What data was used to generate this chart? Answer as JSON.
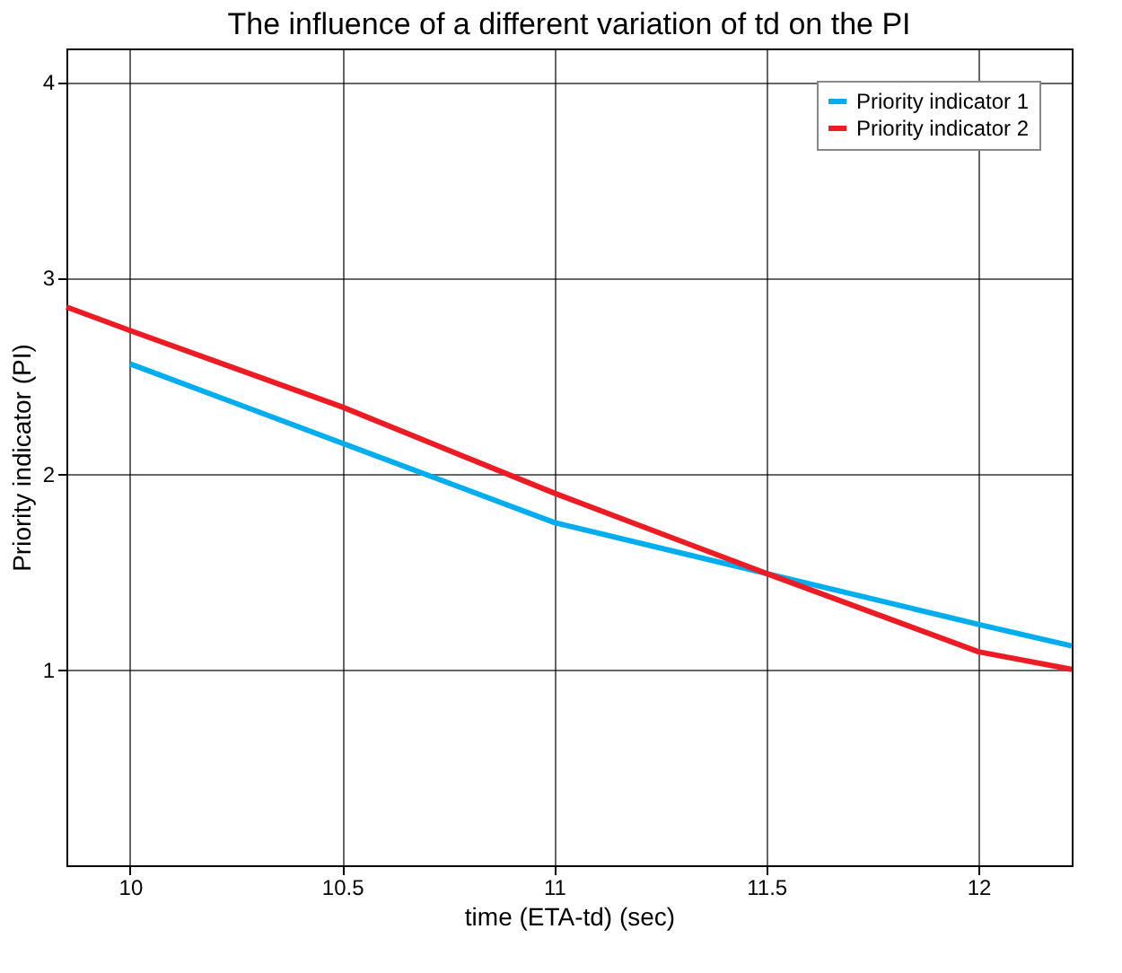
{
  "chart_data": {
    "type": "line",
    "title": "The influence of a different variation of td on the PI",
    "xlabel": "time (ETA-td) (sec)",
    "ylabel": "Priority indicator (PI)",
    "xlim": [
      9.85,
      12.22
    ],
    "xticks": [
      10,
      10.5,
      11,
      11.5,
      12
    ],
    "ylim": [
      0,
      4.17
    ],
    "yticks": [
      1,
      2,
      3,
      4
    ],
    "grid": true,
    "legend": "top right",
    "line_style": "solid",
    "marker": "none",
    "series": [
      {
        "name": "Priority indicator 1",
        "color": "#00aeef",
        "x": [
          10,
          11,
          11.5,
          12,
          12.22
        ],
        "values": [
          2.56,
          1.75,
          1.49,
          1.23,
          1.12
        ]
      },
      {
        "name": "Priority indicator 2",
        "color": "#ed1c24",
        "x": [
          9.85,
          10,
          10.5,
          11,
          11.5,
          12,
          12.22
        ],
        "values": [
          2.85,
          2.73,
          2.34,
          1.9,
          1.49,
          1.09,
          1.0
        ]
      }
    ]
  }
}
